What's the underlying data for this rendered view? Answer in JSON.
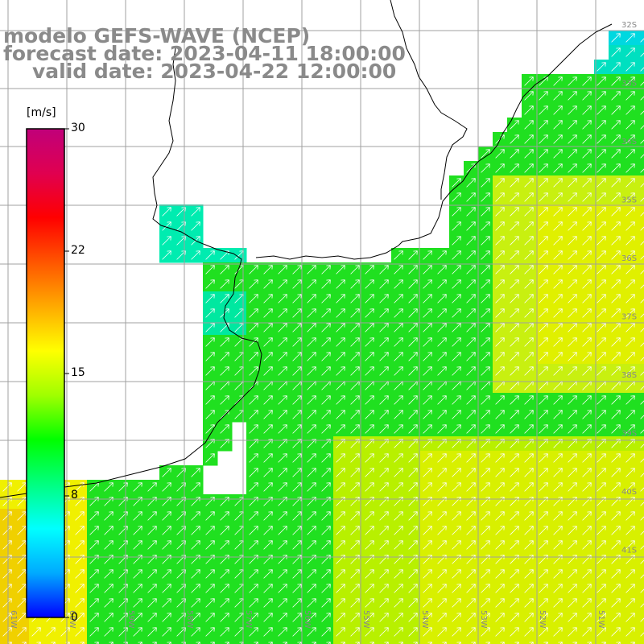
{
  "title": {
    "line1": "modelo GEFS-WAVE (NCEP)",
    "line2": "forecast date: 2023-04-11 18:00:00",
    "line3": "valid date: 2023-04-22 12:00:00"
  },
  "colorbar": {
    "unit": "[m/s]",
    "ticks": [
      "30",
      "22",
      "15",
      "8",
      "0"
    ],
    "stops": [
      "#0000ff",
      "#00aaff",
      "#00ffff",
      "#00ff80",
      "#00ff00",
      "#a0ff00",
      "#ffff00",
      "#ffaa00",
      "#ff5500",
      "#ff0000",
      "#e00050",
      "#c0007a"
    ]
  },
  "lat_labels": [
    "32S",
    "33S",
    "34S",
    "35S",
    "36S",
    "37S",
    "38S",
    "39S",
    "40S",
    "41S"
  ],
  "lon_labels": [
    "61W",
    "60W",
    "59W",
    "58W",
    "57W",
    "56W",
    "55W",
    "54W",
    "53W",
    "52W",
    "51W"
  ],
  "map": {
    "land_color": "#ffffff",
    "grid_color": "#a0a0a0",
    "vector_color": "#ffffff",
    "field_colors": {
      "low": "#00e8d0",
      "mid": "#20e020",
      "high": "#f0f000"
    },
    "wind_direction": "SW to NE"
  }
}
